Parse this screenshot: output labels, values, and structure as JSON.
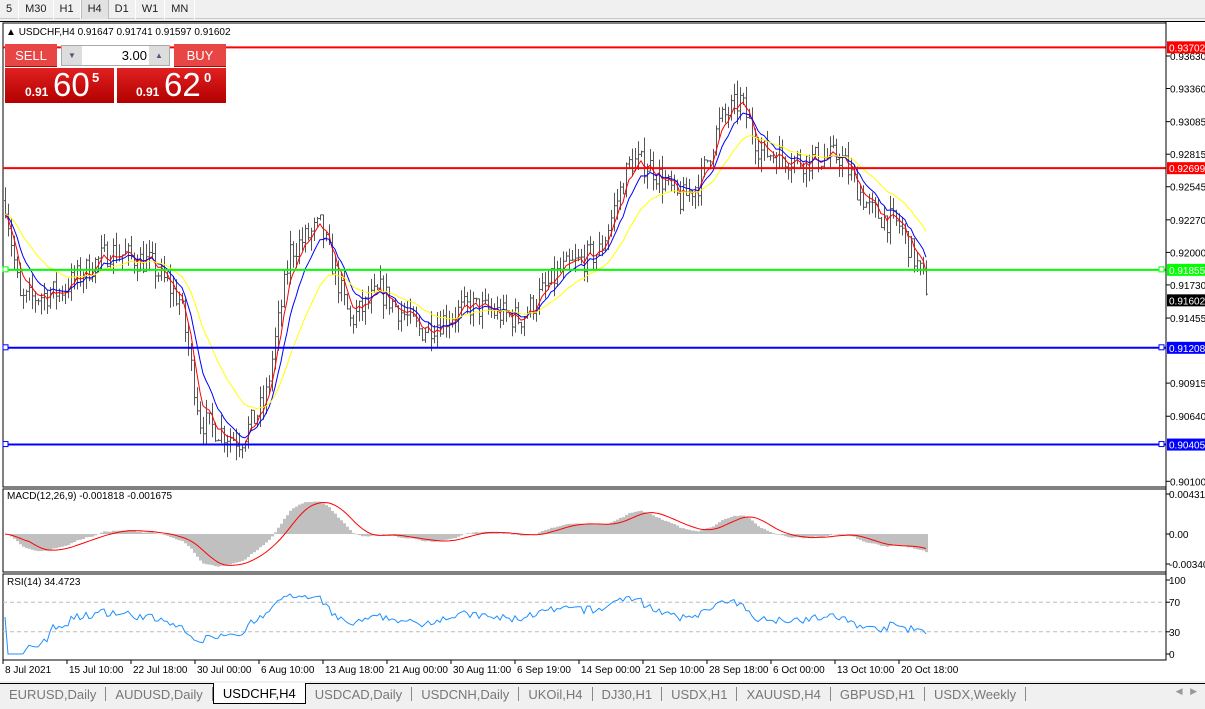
{
  "timeframes": [
    "5",
    "M30",
    "H1",
    "H4",
    "D1",
    "W1",
    "MN"
  ],
  "active_timeframe": "H4",
  "symbol_header": "USDCHF,H4  0.91647 0.91741 0.91597 0.91602",
  "trade_panel": {
    "sell_label": "SELL",
    "buy_label": "BUY",
    "lot": "3.00",
    "sell_prefix": "0.91",
    "sell_big": "60",
    "sell_sup": "5",
    "buy_prefix": "0.91",
    "buy_big": "62",
    "buy_sup": "0"
  },
  "price_axis": [
    "0.93630",
    "0.93360",
    "0.93085",
    "0.92815",
    "0.92545",
    "0.92270",
    "0.92000",
    "0.91730",
    "0.91455",
    "0.90915",
    "0.90640",
    "0.90100"
  ],
  "levels": [
    {
      "price": "0.93702",
      "color": "#ff0000"
    },
    {
      "price": "0.92699",
      "color": "#ff0000"
    },
    {
      "price": "0.91855",
      "color": "#00ff00"
    },
    {
      "price": "0.91208",
      "color": "#0000ff"
    },
    {
      "price": "0.90405",
      "color": "#0000ff"
    }
  ],
  "current_price": "0.91602",
  "macd": {
    "label": "MACD(12,26,9) -0.001818 -0.001675",
    "axis": [
      "0.00431",
      "0.00",
      "-0.00340"
    ]
  },
  "rsi": {
    "label": "RSI(14) 34.4723",
    "axis": [
      "100",
      "70",
      "30",
      "0"
    ],
    "levels": [
      70,
      30
    ]
  },
  "time_axis": [
    "8 Jul 2021",
    "15 Jul 10:00",
    "22 Jul 18:00",
    "30 Jul 00:00",
    "6 Aug 10:00",
    "13 Aug 18:00",
    "21 Aug 00:00",
    "30 Aug 11:00",
    "6 Sep 19:00",
    "14 Sep 00:00",
    "21 Sep 10:00",
    "28 Sep 18:00",
    "6 Oct 00:00",
    "13 Oct 10:00",
    "20 Oct 18:00"
  ],
  "tabs": [
    "EURUSD,Daily",
    "AUDUSD,Daily",
    "USDCHF,H4",
    "USDCAD,Daily",
    "USDCNH,Daily",
    "UKOil,H4",
    "DJ30,H1",
    "USDX,H1",
    "XAUUSD,H4",
    "GBPUSD,H1",
    "USDX,Weekly"
  ],
  "active_tab": "USDCHF,H4",
  "ma_colors": [
    "#ff0000",
    "#0000ff",
    "#ffff00"
  ]
}
